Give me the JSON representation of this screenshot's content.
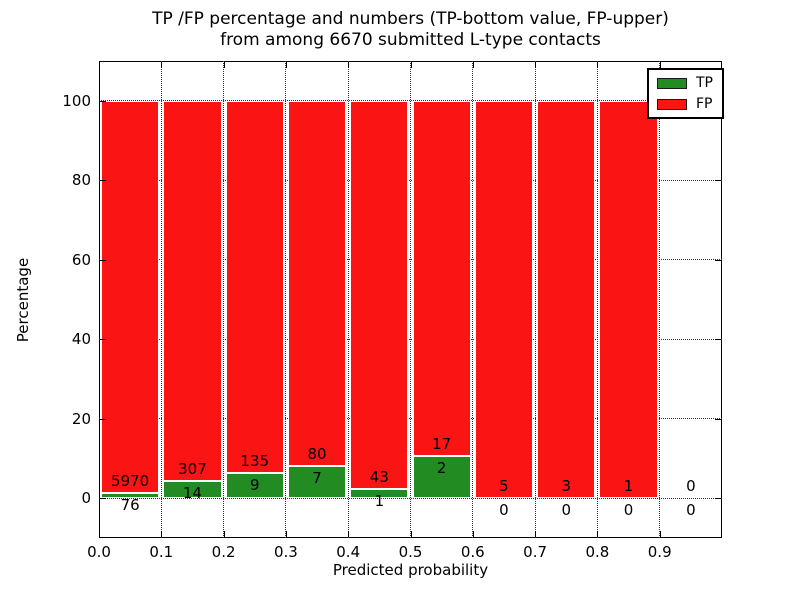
{
  "chart_data": {
    "type": "bar",
    "stacked": true,
    "title_line1": "TP /FP percentage and numbers (TP-bottom value, FP-upper)",
    "title_line2": "from among 6670 submitted L-type contacts",
    "xlabel": "Predicted probability",
    "ylabel": "Percentage",
    "x_tick_labels": [
      "0.0",
      "0.1",
      "0.2",
      "0.3",
      "0.4",
      "0.5",
      "0.6",
      "0.7",
      "0.8",
      "0.9"
    ],
    "y_tick_values": [
      0,
      20,
      40,
      60,
      80,
      100
    ],
    "xlim": [
      0,
      1.0
    ],
    "ylim": [
      -10,
      110
    ],
    "grid": "dotted",
    "total_contacts": 6670,
    "legend": {
      "position": "upper-right",
      "items": [
        {
          "label": "TP",
          "color": "#228b22"
        },
        {
          "label": "FP",
          "color": "#fa1414"
        }
      ]
    },
    "bins": [
      {
        "x0": 0.0,
        "x1": 0.1,
        "tp": 76,
        "fp": 5970
      },
      {
        "x0": 0.1,
        "x1": 0.2,
        "tp": 14,
        "fp": 307
      },
      {
        "x0": 0.2,
        "x1": 0.3,
        "tp": 9,
        "fp": 135
      },
      {
        "x0": 0.3,
        "x1": 0.4,
        "tp": 7,
        "fp": 80
      },
      {
        "x0": 0.4,
        "x1": 0.5,
        "tp": 1,
        "fp": 43
      },
      {
        "x0": 0.5,
        "x1": 0.6,
        "tp": 2,
        "fp": 17
      },
      {
        "x0": 0.6,
        "x1": 0.7,
        "tp": 0,
        "fp": 5
      },
      {
        "x0": 0.7,
        "x1": 0.8,
        "tp": 0,
        "fp": 3
      },
      {
        "x0": 0.8,
        "x1": 0.9,
        "tp": 0,
        "fp": 1
      },
      {
        "x0": 0.9,
        "x1": 1.0,
        "tp": 0,
        "fp": 0
      }
    ],
    "colors": {
      "tp": "#228b22",
      "fp": "#fa1414",
      "grid": "#333333",
      "frame": "#000000",
      "bar_edge": "#ffffff"
    }
  }
}
